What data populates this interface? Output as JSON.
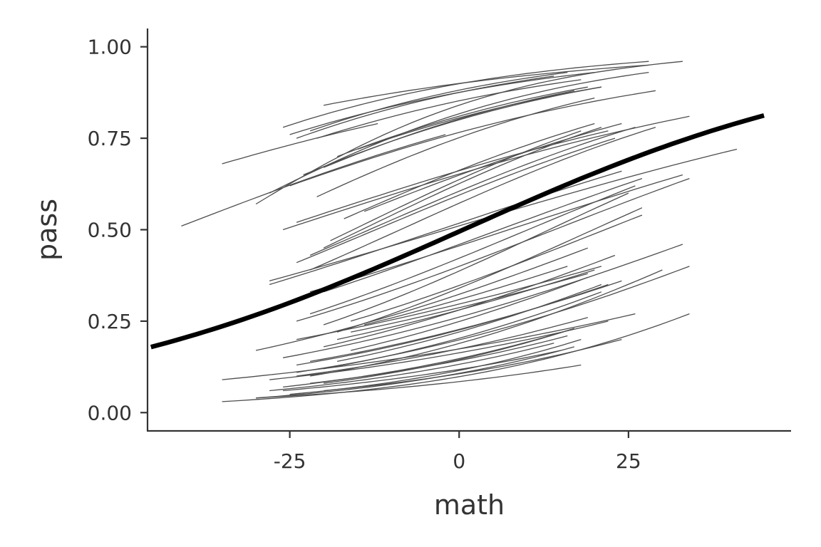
{
  "chart_data": {
    "type": "line",
    "xlabel": "math",
    "ylabel": "pass",
    "xlim": [
      -46,
      49
    ],
    "ylim": [
      -0.05,
      1.05
    ],
    "x_ticks": [
      -25,
      0,
      25
    ],
    "x_tick_labels": [
      "-25",
      "0",
      "25"
    ],
    "y_ticks": [
      0,
      0.25,
      0.5,
      0.75,
      1.0
    ],
    "y_tick_labels": [
      "0.00",
      "0.25",
      "0.50",
      "0.75",
      "1.00"
    ],
    "grid": false,
    "legend": "none",
    "colors": {
      "group_lines": "#4d4d4d",
      "mean_line": "#000000",
      "axes": "#333333"
    },
    "mean_curve": {
      "x_range": [
        -45.5,
        45
      ],
      "intercept": -0.02,
      "slope": 0.033
    },
    "group_curves": [
      {
        "x0": -41,
        "x1": -2,
        "y0": 0.51,
        "y1": 0.76
      },
      {
        "x0": -35,
        "x1": -12,
        "y0": 0.68,
        "y1": 0.79
      },
      {
        "x0": -30,
        "x1": 33,
        "y0": 0.57,
        "y1": 0.96
      },
      {
        "x0": -28,
        "x1": 28,
        "y0": 0.6,
        "y1": 0.93
      },
      {
        "x0": -26,
        "x1": 28,
        "y0": 0.78,
        "y1": 0.96
      },
      {
        "x0": -25,
        "x1": 20,
        "y0": 0.76,
        "y1": 0.93
      },
      {
        "x0": -24,
        "x1": 14,
        "y0": 0.75,
        "y1": 0.92
      },
      {
        "x0": -22,
        "x1": 16,
        "y0": 0.77,
        "y1": 0.93
      },
      {
        "x0": -20,
        "x1": 28,
        "y0": 0.84,
        "y1": 0.95
      },
      {
        "x0": -21,
        "x1": 18,
        "y0": 0.75,
        "y1": 0.91
      },
      {
        "x0": -25,
        "x1": 29,
        "y0": 0.62,
        "y1": 0.88
      },
      {
        "x0": -23,
        "x1": 21,
        "y0": 0.65,
        "y1": 0.89
      },
      {
        "x0": -21,
        "x1": 20,
        "y0": 0.59,
        "y1": 0.86
      },
      {
        "x0": -20,
        "x1": 17,
        "y0": 0.67,
        "y1": 0.88
      },
      {
        "x0": -18,
        "x1": 19,
        "y0": 0.7,
        "y1": 0.89
      },
      {
        "x0": -15,
        "x1": 21,
        "y0": 0.72,
        "y1": 0.89
      },
      {
        "x0": -26,
        "x1": 34,
        "y0": 0.5,
        "y1": 0.81
      },
      {
        "x0": -24,
        "x1": 22,
        "y0": 0.52,
        "y1": 0.77
      },
      {
        "x0": -22,
        "x1": 26,
        "y0": 0.43,
        "y1": 0.78
      },
      {
        "x0": -20,
        "x1": 21,
        "y0": 0.45,
        "y1": 0.78
      },
      {
        "x0": -19,
        "x1": 18,
        "y0": 0.47,
        "y1": 0.77
      },
      {
        "x0": -17,
        "x1": 20,
        "y0": 0.53,
        "y1": 0.79
      },
      {
        "x0": -14,
        "x1": 24,
        "y0": 0.55,
        "y1": 0.79
      },
      {
        "x0": -22,
        "x1": 29,
        "y0": 0.39,
        "y1": 0.78
      },
      {
        "x0": -24,
        "x1": 23,
        "y0": 0.41,
        "y1": 0.75
      },
      {
        "x0": -28,
        "x1": 41,
        "y0": 0.36,
        "y1": 0.72
      },
      {
        "x0": -28,
        "x1": 24,
        "y0": 0.35,
        "y1": 0.66
      },
      {
        "x0": -22,
        "x1": 33,
        "y0": 0.33,
        "y1": 0.65
      },
      {
        "x0": -20,
        "x1": 27,
        "y0": 0.33,
        "y1": 0.64
      },
      {
        "x0": -24,
        "x1": 34,
        "y0": 0.25,
        "y1": 0.64
      },
      {
        "x0": -22,
        "x1": 26,
        "y0": 0.27,
        "y1": 0.62
      },
      {
        "x0": -20,
        "x1": 25,
        "y0": 0.24,
        "y1": 0.6
      },
      {
        "x0": -18,
        "x1": 27,
        "y0": 0.22,
        "y1": 0.56
      },
      {
        "x0": -16,
        "x1": 27,
        "y0": 0.25,
        "y1": 0.54
      },
      {
        "x0": -30,
        "x1": 19,
        "y0": 0.17,
        "y1": 0.45
      },
      {
        "x0": -24,
        "x1": 21,
        "y0": 0.2,
        "y1": 0.4
      },
      {
        "x0": -20,
        "x1": 23,
        "y0": 0.18,
        "y1": 0.43
      },
      {
        "x0": -18,
        "x1": 20,
        "y0": 0.2,
        "y1": 0.39
      },
      {
        "x0": -16,
        "x1": 19,
        "y0": 0.22,
        "y1": 0.38
      },
      {
        "x0": -14,
        "x1": 16,
        "y0": 0.24,
        "y1": 0.4
      },
      {
        "x0": -26,
        "x1": 33,
        "y0": 0.15,
        "y1": 0.46
      },
      {
        "x0": -24,
        "x1": 22,
        "y0": 0.13,
        "y1": 0.35
      },
      {
        "x0": -22,
        "x1": 24,
        "y0": 0.14,
        "y1": 0.36
      },
      {
        "x0": -20,
        "x1": 21,
        "y0": 0.12,
        "y1": 0.33
      },
      {
        "x0": -18,
        "x1": 21,
        "y0": 0.14,
        "y1": 0.35
      },
      {
        "x0": -16,
        "x1": 19,
        "y0": 0.17,
        "y1": 0.37
      },
      {
        "x0": -24,
        "x1": 34,
        "y0": 0.11,
        "y1": 0.4
      },
      {
        "x0": -22,
        "x1": 30,
        "y0": 0.1,
        "y1": 0.39
      },
      {
        "x0": -35,
        "x1": 26,
        "y0": 0.09,
        "y1": 0.27
      },
      {
        "x0": -28,
        "x1": 22,
        "y0": 0.09,
        "y1": 0.25
      },
      {
        "x0": -26,
        "x1": 17,
        "y0": 0.07,
        "y1": 0.23
      },
      {
        "x0": -24,
        "x1": 19,
        "y0": 0.1,
        "y1": 0.26
      },
      {
        "x0": -22,
        "x1": 16,
        "y0": 0.08,
        "y1": 0.21
      },
      {
        "x0": -20,
        "x1": 24,
        "y0": 0.06,
        "y1": 0.2
      },
      {
        "x0": -30,
        "x1": 17,
        "y0": 0.04,
        "y1": 0.18
      },
      {
        "x0": -28,
        "x1": 14,
        "y0": 0.06,
        "y1": 0.19
      },
      {
        "x0": -25,
        "x1": 18,
        "y0": 0.05,
        "y1": 0.2
      },
      {
        "x0": -35,
        "x1": 34,
        "y0": 0.03,
        "y1": 0.27
      },
      {
        "x0": -30,
        "x1": 18,
        "y0": 0.04,
        "y1": 0.13
      },
      {
        "x0": -26,
        "x1": 15,
        "y0": 0.06,
        "y1": 0.17
      },
      {
        "x0": -20,
        "x1": 17,
        "y0": 0.08,
        "y1": 0.23
      }
    ]
  }
}
